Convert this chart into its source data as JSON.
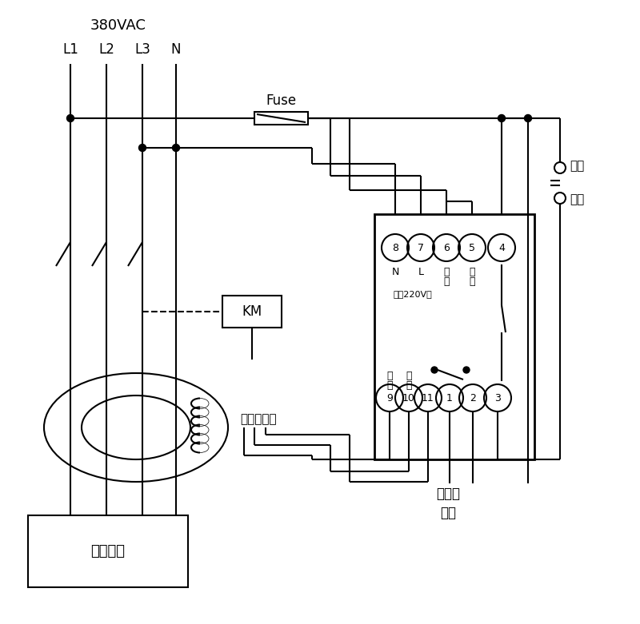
{
  "bg_color": "#ffffff",
  "line_color": "#000000",
  "voltage_label": "380VAC",
  "phase_labels": [
    "L1",
    "L2",
    "L3",
    "N"
  ],
  "fuse_label": "Fuse",
  "km_label": "KM",
  "transformer_label": "零序互感器",
  "device_label": "用戶設備",
  "alarm_label": "接聲光\n報警",
  "lock_label1": "自鎖",
  "lock_label2": "開關",
  "top_terminals": [
    "8",
    "7",
    "6",
    "5",
    "4"
  ],
  "top_term_labels_row1": [
    "N",
    "L",
    "試",
    "試",
    ""
  ],
  "top_term_labels_row2": [
    "",
    "",
    "驗",
    "驗",
    ""
  ],
  "power_label": "電源220V～",
  "bottom_terminals": [
    "9",
    "10",
    "11",
    "1",
    "2",
    "3"
  ],
  "bot_term_labels_row1": [
    "信",
    "信",
    "",
    "",
    "",
    ""
  ],
  "bot_term_labels_row2": [
    "號",
    "號",
    "",
    "",
    "",
    ""
  ]
}
